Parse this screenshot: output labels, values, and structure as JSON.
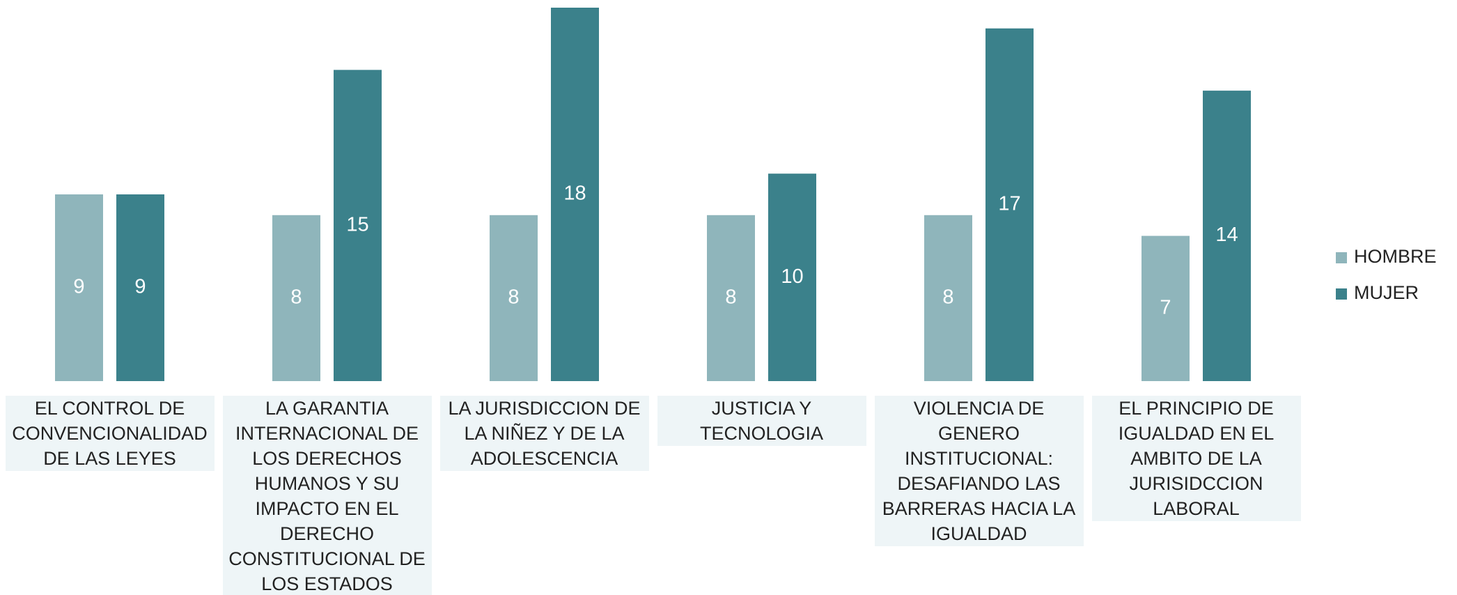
{
  "chart_data": {
    "type": "bar",
    "categories": [
      "EL CONTROL DE CONVENCIONALIDAD DE LAS LEYES",
      "LA GARANTIA INTERNACIONAL DE LOS DERECHOS HUMANOS Y SU IMPACTO EN EL DERECHO CONSTITUCIONAL DE LOS ESTADOS",
      "LA JURISDICCION DE LA NIÑEZ Y DE LA ADOLESCENCIA",
      "JUSTICIA Y TECNOLOGIA",
      "VIOLENCIA DE GENERO INSTITUCIONAL: DESAFIANDO LAS BARRERAS HACIA LA IGUALDAD",
      "EL PRINCIPIO DE IGUALDAD EN EL AMBITO DE LA JURISIDCCION LABORAL"
    ],
    "series": [
      {
        "name": "HOMBRE",
        "color": "#8fb5bb",
        "values": [
          9,
          8,
          8,
          8,
          8,
          7
        ]
      },
      {
        "name": "MUJER",
        "color": "#3b818b",
        "values": [
          9,
          15,
          18,
          10,
          17,
          14
        ]
      }
    ],
    "legend": "right"
  }
}
